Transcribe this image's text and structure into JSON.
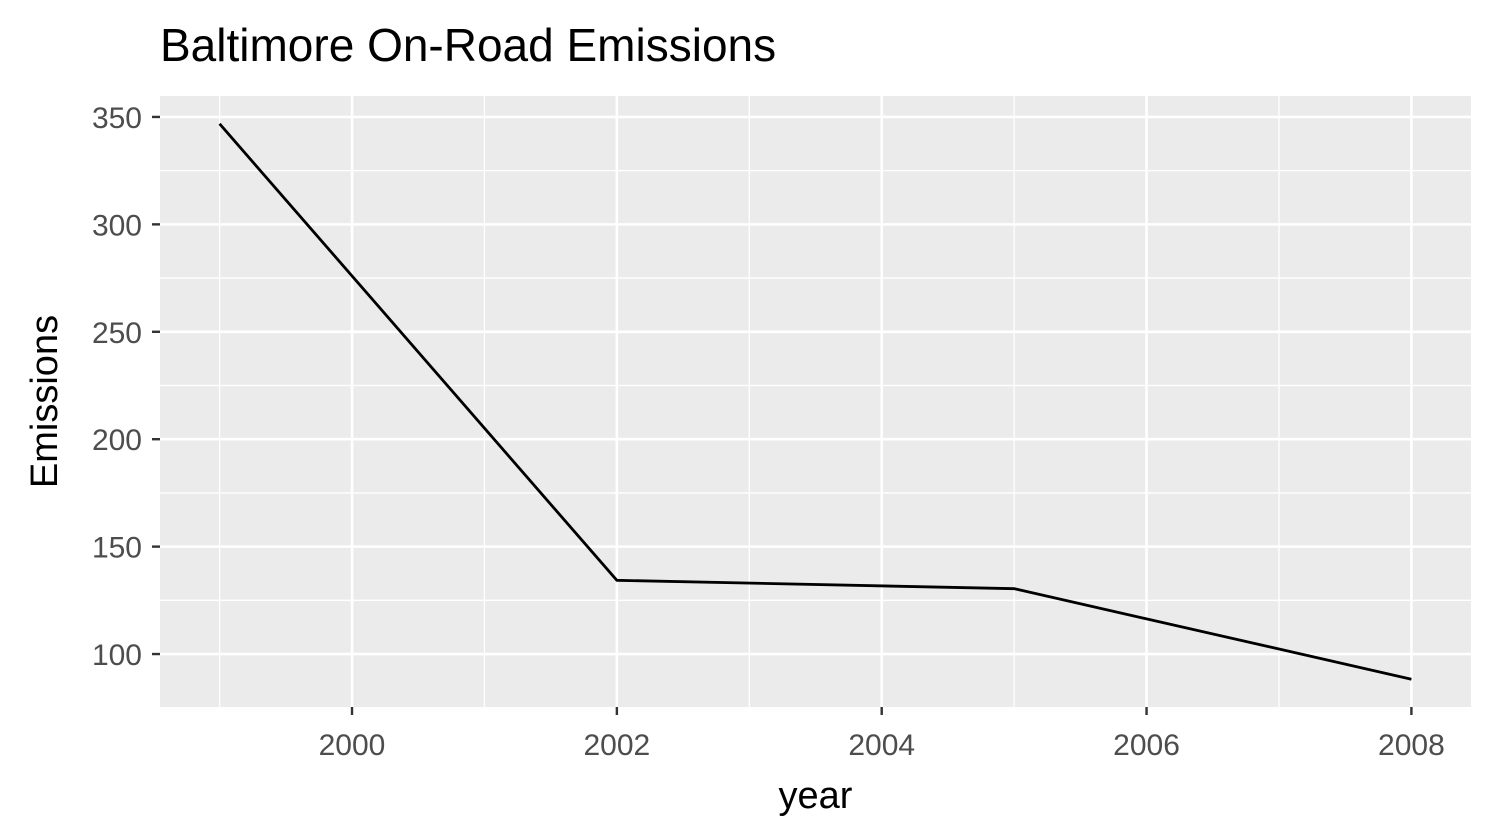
{
  "chart_data": {
    "type": "line",
    "title": "Baltimore On-Road Emissions",
    "xlabel": "year",
    "ylabel": "Emissions",
    "x": [
      1999,
      2002,
      2005,
      2008
    ],
    "series": [
      {
        "values": [
          346.82,
          134.31,
          130.43,
          88.28
        ],
        "color": "#000000"
      }
    ],
    "xlim": [
      1998.55,
      2008.45
    ],
    "ylim": [
      75.35,
      359.75
    ],
    "xticks": [
      2000,
      2002,
      2004,
      2006,
      2008
    ],
    "yticks": [
      100,
      150,
      200,
      250,
      300,
      350
    ],
    "panel_background": "#ebebeb",
    "grid": true,
    "grid_color": "#ffffff"
  }
}
